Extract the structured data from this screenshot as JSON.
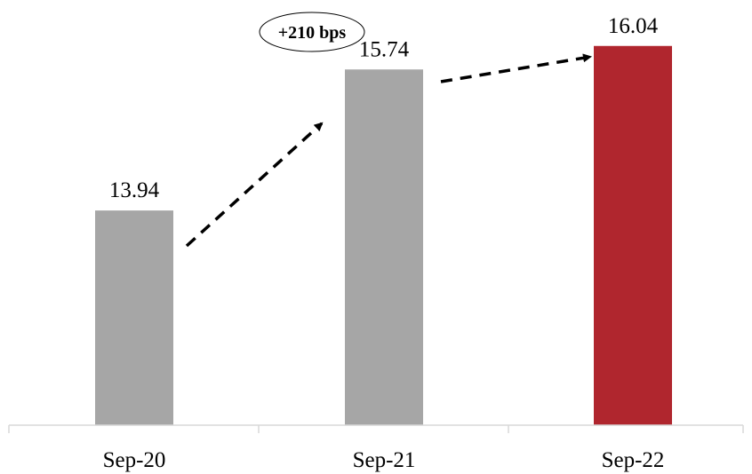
{
  "chart_data": {
    "type": "bar",
    "categories": [
      "Sep-20",
      "Sep-21",
      "Sep-22"
    ],
    "values": [
      13.94,
      15.74,
      16.04
    ],
    "value_labels": [
      "13.94",
      "15.74",
      "16.04"
    ],
    "colors": [
      "#a6a6a6",
      "#a6a6a6",
      "#b0262e"
    ],
    "annotation": "+210 bps",
    "ylim": [
      11.2,
      16.4
    ],
    "grid": false,
    "legend": "none"
  }
}
